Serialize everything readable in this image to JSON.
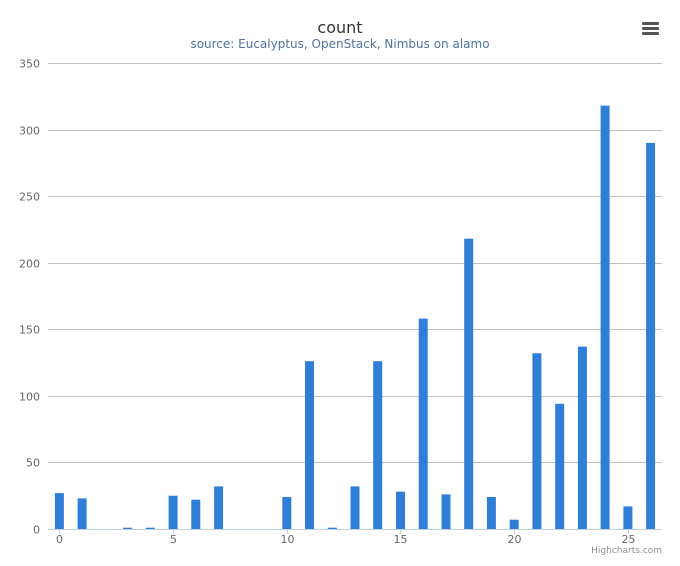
{
  "chart_data": {
    "type": "bar",
    "title": "count",
    "subtitle": "source: Eucalyptus, OpenStack, Nimbus on alamo",
    "x": [
      0,
      1,
      2,
      3,
      4,
      5,
      6,
      7,
      8,
      9,
      10,
      11,
      12,
      13,
      14,
      15,
      16,
      17,
      18,
      19,
      20,
      21,
      22,
      23,
      24,
      25,
      26
    ],
    "values": [
      27,
      23,
      0,
      1,
      1,
      25,
      22,
      32,
      0,
      0,
      24,
      126,
      1,
      32,
      126,
      28,
      158,
      26,
      218,
      24,
      7,
      132,
      94,
      137,
      318,
      17,
      290
    ],
    "x_ticks": [
      "0",
      "5",
      "10",
      "15",
      "20",
      "25"
    ],
    "x_tick_values": [
      0,
      5,
      10,
      15,
      20,
      25
    ],
    "y_ticks": [
      "0",
      "50",
      "100",
      "150",
      "200",
      "250",
      "300",
      "350"
    ],
    "ylim": [
      0,
      350
    ],
    "xlim": [
      -0.5,
      26.5
    ],
    "grid": true,
    "legend": "none",
    "bar_color": "#2f7ed8"
  },
  "credits": "Highcharts.com",
  "menu_icon": "hamburger-menu-icon"
}
